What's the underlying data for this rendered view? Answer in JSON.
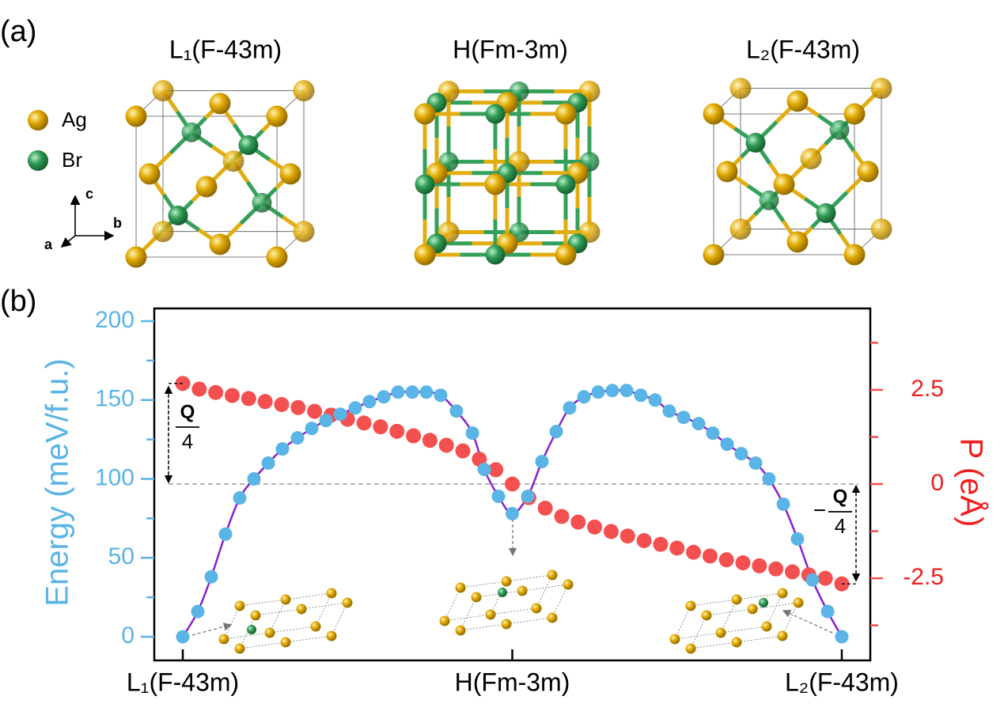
{
  "panel_labels": [
    "(a)",
    "(b)"
  ],
  "structures": [
    "L₁(F-43m)",
    "H(Fm-3m)",
    "L₂(F-43m)"
  ],
  "atom_legend": [
    "Ag",
    "Br"
  ],
  "axis_letters": [
    "a",
    "b",
    "c"
  ],
  "chart_data": {
    "type": "scatter",
    "ylabel": "Energy (meV/f.u.)",
    "y2label": "P (eÅ)",
    "xlim": [
      -1.73,
      41.73
    ],
    "xticks": [
      {
        "value": 0,
        "label": "L₁(F-43m)"
      },
      {
        "value": 20,
        "label": "H(Fm-3m)"
      },
      {
        "value": 40,
        "label": "L₂(F-43m)"
      }
    ],
    "ylim": [
      -15,
      208
    ],
    "yticks": [
      0,
      50,
      100,
      150,
      200
    ],
    "yticks_minor": [
      25,
      75,
      125,
      175
    ],
    "y2lim": [
      -4.68,
      4.66
    ],
    "y2ticks": [
      2.5,
      0,
      -2.5
    ],
    "y2ticks_minor": [
      3.75,
      1.25,
      -1.25,
      -3.75
    ],
    "series": [
      {
        "name": "Energy",
        "color": "#5ab4e5",
        "line_color": "#8a1fd0",
        "x": [
          0,
          0.91,
          1.73,
          2.59,
          3.46,
          4.32,
          5.19,
          6.05,
          6.96,
          7.83,
          8.69,
          9.56,
          10.47,
          11.33,
          12.2,
          13.06,
          13.93,
          14.79,
          15.65,
          16.61,
          17.58,
          18.3,
          19.16,
          20,
          20.94,
          21.8,
          22.67,
          23.48,
          24.35,
          25.21,
          26.07,
          26.94,
          27.8,
          28.67,
          29.53,
          30.4,
          31.31,
          32.17,
          33.04,
          33.9,
          34.77,
          35.58,
          36.45,
          37.31,
          38.22,
          39.14,
          40
        ],
        "values": [
          0,
          16,
          38,
          65,
          88,
          100,
          110,
          119,
          126,
          132,
          137,
          141,
          145,
          149,
          152,
          155,
          155,
          155,
          153,
          143,
          129,
          106,
          89,
          78,
          89,
          111,
          130,
          145,
          152,
          155,
          156,
          156,
          153,
          150,
          143,
          139,
          135,
          129,
          122,
          116,
          110,
          100,
          84,
          62,
          36,
          16,
          0
        ]
      },
      {
        "name": "P",
        "color": "#f55050",
        "axis": "y2",
        "x": [
          0,
          1,
          2,
          3,
          4,
          5,
          6,
          7,
          8,
          9,
          10,
          11,
          12,
          13,
          14,
          15,
          16,
          17,
          18,
          19,
          20,
          21,
          22,
          23,
          24,
          25,
          26,
          27,
          28,
          29,
          30,
          31,
          32,
          33,
          34,
          35,
          36,
          37,
          38,
          39,
          40
        ],
        "values": [
          2.67,
          2.52,
          2.43,
          2.35,
          2.27,
          2.19,
          2.11,
          2.03,
          1.93,
          1.83,
          1.72,
          1.62,
          1.52,
          1.4,
          1.28,
          1.16,
          1.03,
          0.88,
          0.66,
          0.38,
          0,
          -0.36,
          -0.64,
          -0.86,
          -1.01,
          -1.14,
          -1.26,
          -1.38,
          -1.5,
          -1.6,
          -1.7,
          -1.81,
          -1.91,
          -2.01,
          -2.09,
          -2.17,
          -2.25,
          -2.33,
          -2.41,
          -2.5,
          -2.65
        ]
      }
    ],
    "annotations": [
      {
        "numerator": "Q",
        "denominator": "4"
      },
      {
        "sign": "−",
        "numerator": "Q",
        "denominator": "4"
      }
    ]
  }
}
